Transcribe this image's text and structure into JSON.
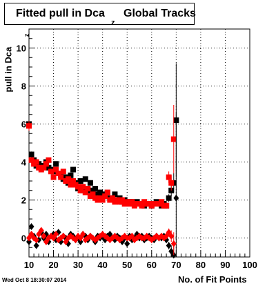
{
  "title": {
    "main": "Fitted pull in Dca",
    "subscript": "z",
    "rest": "Global Tracks"
  },
  "timestamp": "Wed Oct  8 18:30:07 2014",
  "chart_data": {
    "type": "scatter",
    "xlabel": "No. of Fit Points",
    "ylabel": "pull in Dca",
    "ylabel_subscript": "z",
    "xlim": [
      10,
      100
    ],
    "ylim": [
      -1,
      11
    ],
    "xticks": [
      10,
      20,
      30,
      40,
      50,
      60,
      70,
      80,
      90,
      100
    ],
    "yticks": [
      0,
      2,
      4,
      6,
      8,
      10
    ],
    "grid": true,
    "colors": {
      "black": "#000000",
      "red": "#ff0000"
    },
    "series": [
      {
        "marker": "square",
        "color": "#000000",
        "x": [
          10,
          11,
          12,
          13,
          14,
          15,
          16,
          17,
          18,
          19,
          20,
          21,
          22,
          23,
          24,
          25,
          26,
          27,
          28,
          29,
          30,
          31,
          32,
          33,
          34,
          35,
          36,
          37,
          38,
          39,
          40,
          41,
          42,
          43,
          44,
          45,
          46,
          47,
          48,
          49,
          50,
          51,
          52,
          53,
          54,
          55,
          56,
          57,
          58,
          59,
          60,
          61,
          62,
          63,
          64,
          65,
          66,
          67,
          68,
          69,
          70
        ],
        "y": [
          6.0,
          4.4,
          4.1,
          3.8,
          3.9,
          3.7,
          3.8,
          4.0,
          3.7,
          3.6,
          3.5,
          3.9,
          3.4,
          3.3,
          3.1,
          3.2,
          2.9,
          3.3,
          3.6,
          2.9,
          2.6,
          3.0,
          2.5,
          3.1,
          2.5,
          2.9,
          2.5,
          2.6,
          2.3,
          2.4,
          2.2,
          2.3,
          2.4,
          2.1,
          2.0,
          2.3,
          2.0,
          2.1,
          1.9,
          2.0,
          1.8,
          1.9,
          1.9,
          1.8,
          1.9,
          1.8,
          1.8,
          1.7,
          1.8,
          1.8,
          1.7,
          1.8,
          1.9,
          1.8,
          1.7,
          1.8,
          1.7,
          2.1,
          2.5,
          2.9,
          6.2
        ],
        "yerr": [
          0.25,
          0.15,
          0.12,
          0.1,
          0.1,
          0.1,
          0.1,
          0.1,
          0.1,
          0.1,
          0.1,
          0.1,
          0.1,
          0.1,
          0.1,
          0.1,
          0.1,
          0.1,
          0.1,
          0.1,
          0.1,
          0.1,
          0.1,
          0.1,
          0.1,
          0.1,
          0.1,
          0.1,
          0.1,
          0.1,
          0.1,
          0.1,
          0.1,
          0.1,
          0.1,
          0.1,
          0.1,
          0.1,
          0.1,
          0.1,
          0.1,
          0.1,
          0.1,
          0.1,
          0.1,
          0.1,
          0.1,
          0.1,
          0.1,
          0.1,
          0.1,
          0.1,
          0.1,
          0.1,
          0.1,
          0.1,
          0.15,
          0.2,
          0.3,
          0.5,
          3.0
        ]
      },
      {
        "marker": "square",
        "color": "#ff0000",
        "x": [
          10,
          11,
          12,
          13,
          14,
          15,
          16,
          17,
          18,
          19,
          20,
          21,
          22,
          23,
          24,
          25,
          26,
          27,
          28,
          29,
          30,
          31,
          32,
          33,
          34,
          35,
          36,
          37,
          38,
          39,
          40,
          41,
          42,
          43,
          44,
          45,
          46,
          47,
          48,
          49,
          50,
          51,
          52,
          53,
          54,
          55,
          56,
          57,
          58,
          59,
          60,
          61,
          62,
          63,
          64,
          65,
          66,
          67,
          68,
          69
        ],
        "y": [
          5.9,
          4.1,
          3.9,
          4.0,
          3.7,
          3.6,
          3.7,
          3.9,
          4.1,
          3.5,
          3.2,
          3.6,
          3.4,
          3.2,
          3.5,
          3.0,
          3.1,
          2.8,
          3.0,
          2.8,
          2.7,
          2.5,
          2.7,
          2.4,
          2.6,
          2.2,
          2.3,
          2.1,
          2.0,
          2.1,
          2.0,
          2.2,
          2.4,
          2.0,
          2.1,
          1.9,
          2.0,
          1.9,
          2.0,
          1.8,
          1.9,
          1.8,
          1.9,
          1.7,
          1.8,
          1.8,
          1.7,
          1.9,
          1.8,
          1.8,
          1.7,
          1.8,
          1.8,
          1.8,
          1.9,
          1.7,
          1.7,
          3.2,
          2.9,
          5.2
        ],
        "yerr": [
          0.25,
          0.15,
          0.12,
          0.1,
          0.1,
          0.1,
          0.1,
          0.1,
          0.1,
          0.1,
          0.1,
          0.1,
          0.1,
          0.1,
          0.1,
          0.1,
          0.1,
          0.1,
          0.1,
          0.1,
          0.1,
          0.1,
          0.1,
          0.1,
          0.1,
          0.1,
          0.1,
          0.1,
          0.1,
          0.1,
          0.1,
          0.1,
          0.1,
          0.1,
          0.1,
          0.1,
          0.1,
          0.1,
          0.1,
          0.1,
          0.1,
          0.1,
          0.1,
          0.1,
          0.1,
          0.1,
          0.1,
          0.1,
          0.1,
          0.1,
          0.1,
          0.1,
          0.1,
          0.1,
          0.1,
          0.1,
          0.15,
          0.3,
          0.4,
          1.8
        ]
      },
      {
        "marker": "diamond",
        "color": "#000000",
        "x": [
          10,
          11,
          12,
          13,
          14,
          15,
          16,
          17,
          18,
          19,
          20,
          21,
          22,
          23,
          24,
          25,
          26,
          27,
          28,
          29,
          30,
          31,
          32,
          33,
          34,
          35,
          36,
          37,
          38,
          39,
          40,
          41,
          42,
          43,
          44,
          45,
          46,
          47,
          48,
          49,
          50,
          51,
          52,
          53,
          54,
          55,
          56,
          57,
          58,
          59,
          60,
          61,
          62,
          63,
          64,
          65,
          66,
          67,
          68,
          69,
          70
        ],
        "y": [
          -0.2,
          0.6,
          0.1,
          -0.4,
          -0.1,
          0.3,
          0.0,
          0.2,
          -0.2,
          0.1,
          0.2,
          -0.1,
          0.3,
          -0.2,
          0.1,
          0.0,
          -0.3,
          0.2,
          0.1,
          -0.1,
          0.0,
          -0.2,
          0.2,
          0.1,
          -0.1,
          0.1,
          0.0,
          -0.2,
          0.1,
          0.0,
          0.1,
          -0.1,
          0.1,
          0.2,
          0.0,
          -0.1,
          0.1,
          0.0,
          -0.2,
          0.0,
          -0.3,
          0.1,
          -0.1,
          0.0,
          0.2,
          0.0,
          0.1,
          -0.1,
          0.0,
          0.1,
          0.0,
          -0.1,
          0.1,
          0.0,
          0.0,
          0.1,
          -0.1,
          -0.4,
          -0.7,
          -0.9,
          2.1
        ],
        "yerr": [
          0.15,
          0.12,
          0.1,
          0.1,
          0.1,
          0.1,
          0.1,
          0.1,
          0.1,
          0.1,
          0.1,
          0.1,
          0.1,
          0.1,
          0.1,
          0.1,
          0.1,
          0.1,
          0.1,
          0.1,
          0.1,
          0.1,
          0.1,
          0.1,
          0.1,
          0.1,
          0.1,
          0.1,
          0.1,
          0.1,
          0.1,
          0.1,
          0.1,
          0.1,
          0.1,
          0.1,
          0.1,
          0.1,
          0.1,
          0.1,
          0.1,
          0.1,
          0.1,
          0.1,
          0.1,
          0.1,
          0.1,
          0.1,
          0.1,
          0.1,
          0.1,
          0.1,
          0.1,
          0.1,
          0.1,
          0.1,
          0.12,
          0.2,
          0.3,
          0.5,
          4.5
        ]
      },
      {
        "marker": "diamond",
        "color": "#ff0000",
        "x": [
          10,
          11,
          12,
          13,
          14,
          15,
          16,
          17,
          18,
          19,
          20,
          21,
          22,
          23,
          24,
          25,
          26,
          27,
          28,
          29,
          30,
          31,
          32,
          33,
          34,
          35,
          36,
          37,
          38,
          39,
          40,
          41,
          42,
          43,
          44,
          45,
          46,
          47,
          48,
          49,
          50,
          51,
          52,
          53,
          54,
          55,
          56,
          57,
          58,
          59,
          60,
          61,
          62,
          63,
          64,
          65,
          66,
          67,
          68,
          69
        ],
        "y": [
          0.0,
          0.2,
          0.0,
          -0.1,
          0.2,
          0.4,
          0.1,
          -0.2,
          0.0,
          0.1,
          0.0,
          0.2,
          -0.1,
          0.0,
          0.1,
          -0.2,
          0.0,
          0.1,
          0.0,
          -0.1,
          0.1,
          0.0,
          0.2,
          -0.1,
          0.0,
          0.1,
          0.0,
          -0.1,
          0.0,
          0.1,
          0.2,
          0.1,
          0.0,
          -0.1,
          0.0,
          0.1,
          0.0,
          -0.1,
          0.0,
          0.1,
          0.0,
          0.0,
          0.1,
          -0.1,
          0.0,
          0.1,
          0.0,
          0.0,
          0.1,
          0.0,
          -0.1,
          0.0,
          0.1,
          0.0,
          0.1,
          0.0,
          0.1,
          0.3,
          0.1,
          -0.3
        ],
        "yerr": [
          0.15,
          0.12,
          0.1,
          0.1,
          0.1,
          0.1,
          0.1,
          0.1,
          0.1,
          0.1,
          0.1,
          0.1,
          0.1,
          0.1,
          0.1,
          0.1,
          0.1,
          0.1,
          0.1,
          0.1,
          0.1,
          0.1,
          0.1,
          0.1,
          0.1,
          0.1,
          0.1,
          0.1,
          0.1,
          0.1,
          0.1,
          0.1,
          0.1,
          0.1,
          0.1,
          0.1,
          0.1,
          0.1,
          0.1,
          0.1,
          0.1,
          0.1,
          0.1,
          0.1,
          0.1,
          0.1,
          0.1,
          0.1,
          0.1,
          0.1,
          0.1,
          0.1,
          0.1,
          0.1,
          0.1,
          0.1,
          0.12,
          0.2,
          0.3,
          0.6
        ]
      }
    ]
  }
}
